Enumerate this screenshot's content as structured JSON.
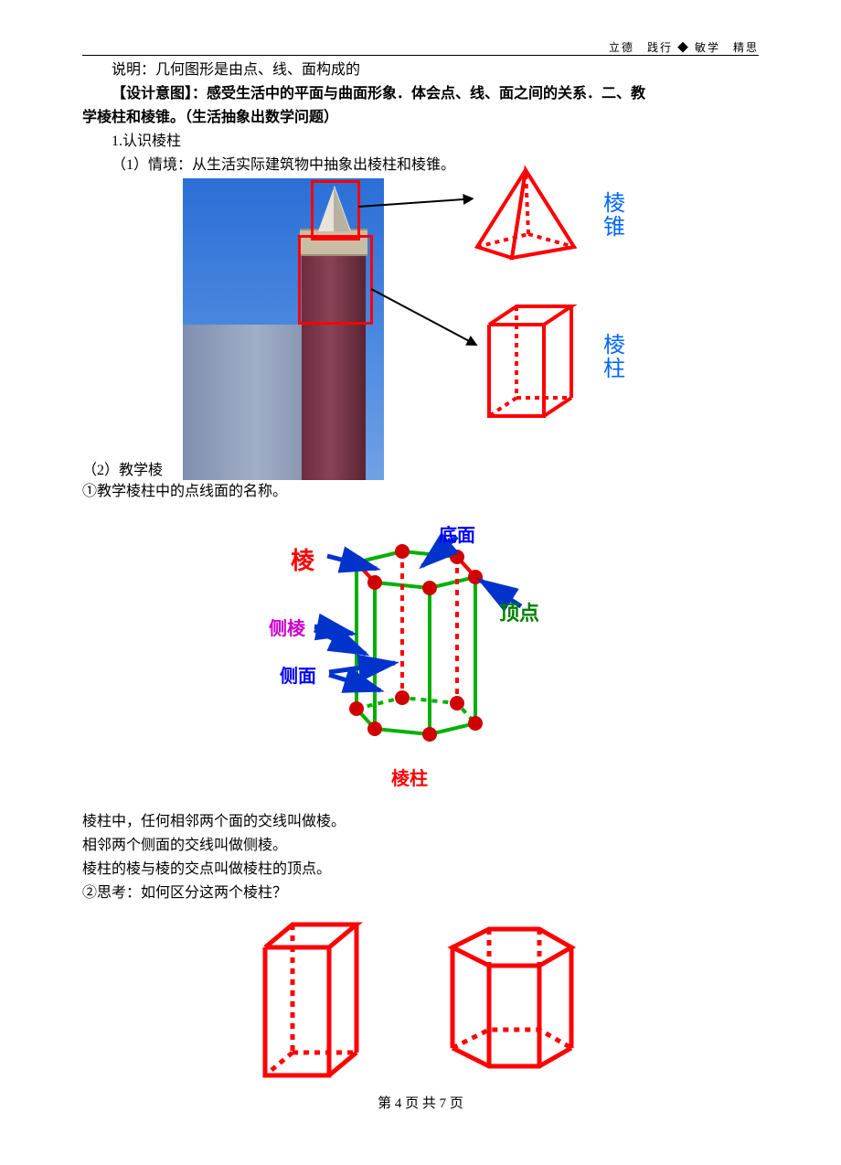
{
  "header": {
    "motto": "立德　践行 ◆ 敏学　精思"
  },
  "text": {
    "p1": "说明：几何图形是由点、线、面构成的",
    "p2a": "【设计意图】：感受生活中的平面与曲面形象．体会点、线、面之间的关系．二、教",
    "p2b": "学棱柱和棱锥。（生活抽象出数学问题）",
    "p3": "1.认识棱柱",
    "p4": "（1）情境：从生活实际建筑物中抽象出棱柱和棱锥。",
    "p5": "（2）教学棱",
    "p6": "①教学棱柱中的点线面的名称。",
    "p7": "棱柱中，任何相邻两个面的交线叫做棱。",
    "p8": "相邻两个侧面的交线叫做侧棱。",
    "p9": "棱柱的棱与棱的交点叫做棱柱的顶点。",
    "p10": "②思考：如何区分这两个棱柱？"
  },
  "fig1": {
    "label_cone": "棱锥",
    "label_prism": "棱柱",
    "colors": {
      "shape_stroke": "#ff0000",
      "label": "#0066ff",
      "arrow": "#000000"
    }
  },
  "fig2": {
    "label_edge": "棱",
    "label_bottom": "底面",
    "label_side_edge": "侧棱",
    "label_vertex": "顶点",
    "label_side_face": "侧面",
    "caption": "棱柱",
    "colors": {
      "edge_label": "#ff0000",
      "bottom_label": "#0000ff",
      "side_edge_label": "#cc00cc",
      "vertex_label": "#008000",
      "side_face_label": "#0000ff",
      "caption": "#ff0000",
      "prism_outline": "#00b000",
      "prism_red": "#ff0000",
      "vertex_fill": "#d00000",
      "arrow": "#0033cc"
    }
  },
  "fig3": {
    "colors": {
      "stroke": "#ff0000"
    }
  },
  "footer": {
    "page_text": "第 4 页 共 7 页"
  }
}
